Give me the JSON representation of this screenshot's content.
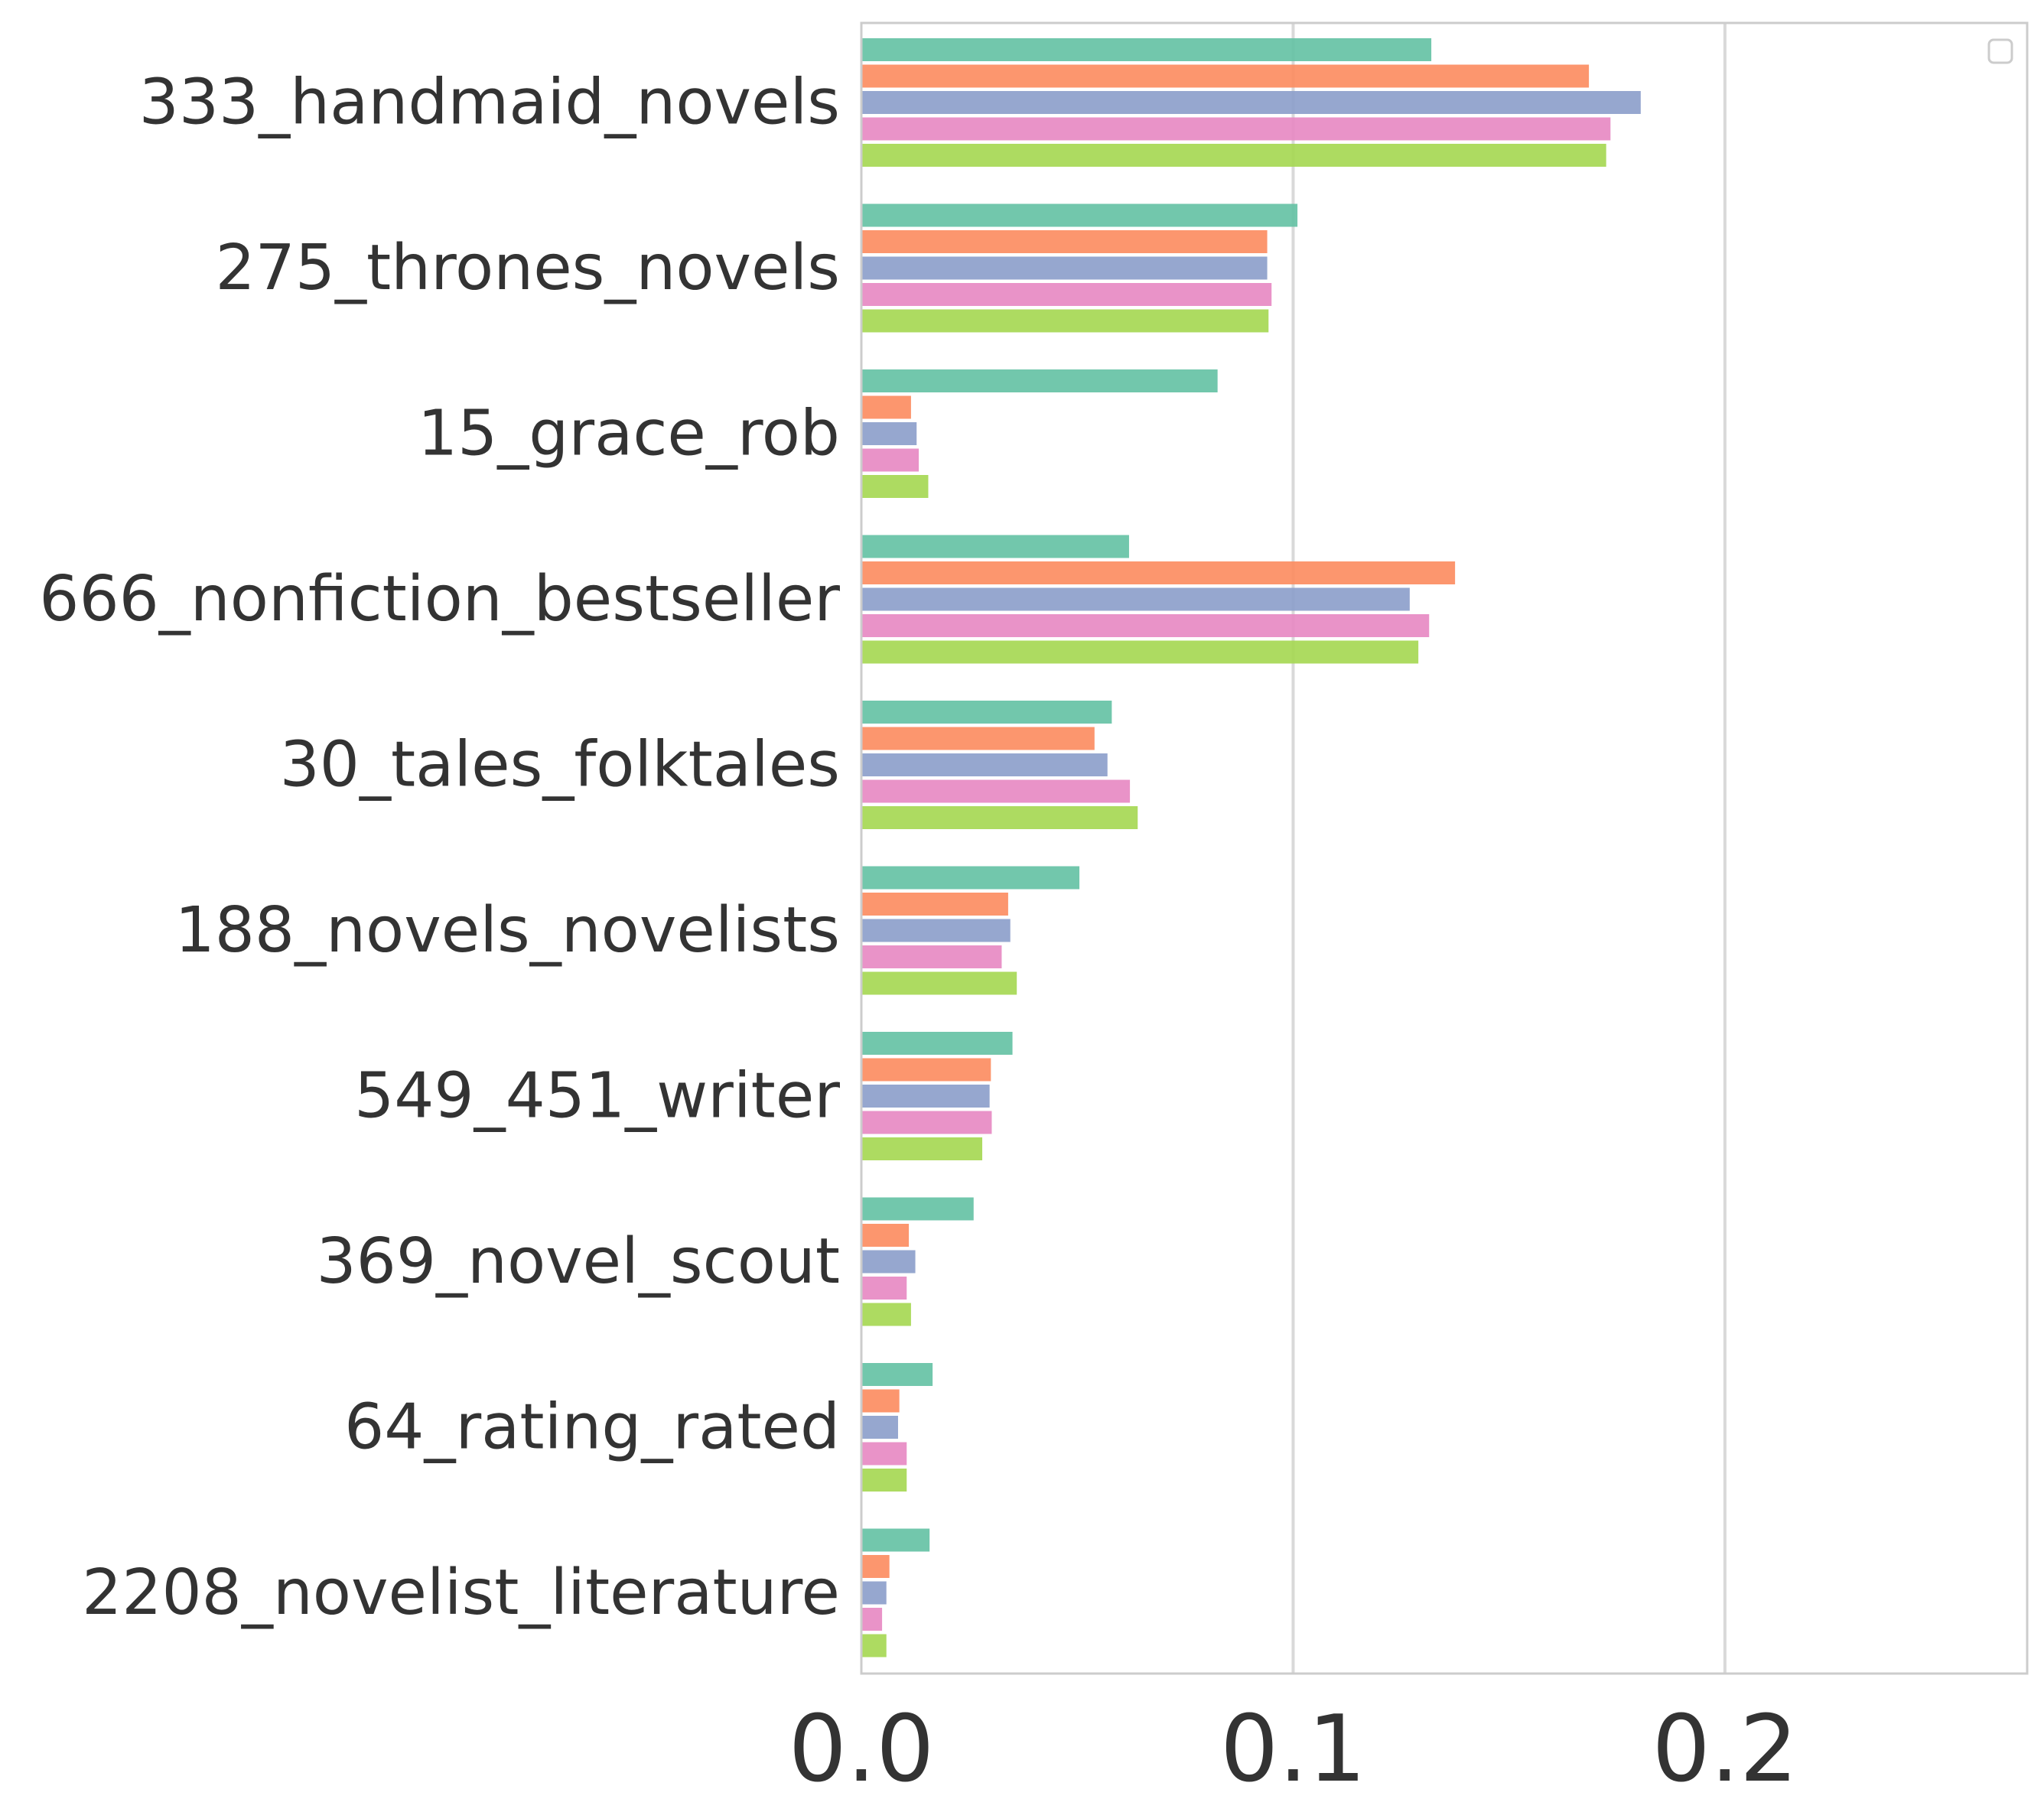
{
  "chart_data": {
    "type": "bar",
    "orientation": "horizontal",
    "categories": [
      "333_handmaid_novels",
      "275_thrones_novels",
      "15_grace_rob",
      "666_nonfiction_bestseller",
      "30_tales_folktales",
      "188_novels_novelists",
      "549_451_writer",
      "369_novel_scout",
      "64_rating_rated",
      "2208_novelist_literature"
    ],
    "series": [
      {
        "color": "#66c2a5",
        "values": [
          0.132,
          0.101,
          0.0825,
          0.062,
          0.058,
          0.0505,
          0.035,
          0.026,
          0.0165,
          0.0158
        ]
      },
      {
        "color": "#fc8d62",
        "values": [
          0.1685,
          0.094,
          0.0115,
          0.1375,
          0.054,
          0.034,
          0.03,
          0.011,
          0.0088,
          0.0065
        ]
      },
      {
        "color": "#8da0cb",
        "values": [
          0.1805,
          0.094,
          0.0128,
          0.127,
          0.057,
          0.0345,
          0.0297,
          0.0125,
          0.0085,
          0.0058
        ]
      },
      {
        "color": "#e78ac3",
        "values": [
          0.1735,
          0.095,
          0.0133,
          0.1315,
          0.0622,
          0.0325,
          0.0302,
          0.0105,
          0.0105,
          0.0048
        ]
      },
      {
        "color": "#a6d854",
        "values": [
          0.1725,
          0.0943,
          0.0155,
          0.129,
          0.064,
          0.036,
          0.028,
          0.0115,
          0.0105,
          0.0058
        ]
      }
    ],
    "x_ticks": [
      "0.0",
      "0.1",
      "0.2"
    ],
    "x_tick_values": [
      0.0,
      0.1,
      0.2
    ],
    "xlim": [
      0.0,
      0.27
    ],
    "xlabel": "",
    "ylabel": "",
    "title": "",
    "grid": "vertical",
    "legend": {
      "placement": "top-right",
      "entries": []
    }
  }
}
